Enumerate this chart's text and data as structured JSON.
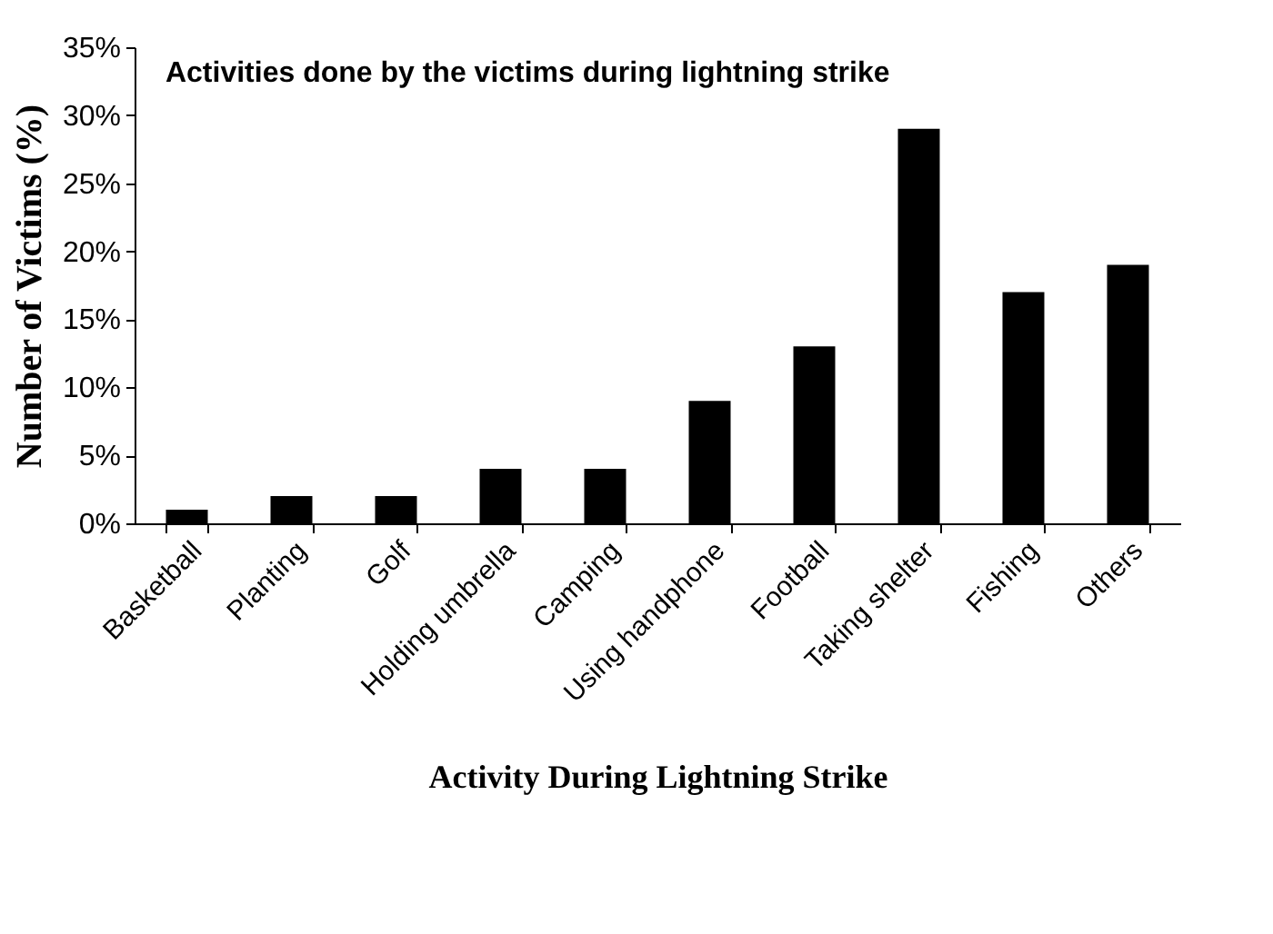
{
  "chart_data": {
    "type": "bar",
    "title": "Activities done by the victims during lightning strike",
    "xlabel": "Activity During Lightning Strike",
    "ylabel": "Number of Victims (%)",
    "categories": [
      "Basketball",
      "Planting",
      "Golf",
      "Holding umbrella",
      "Camping",
      "Using handphone",
      "Football",
      "Taking shelter",
      "Fishing",
      "Others"
    ],
    "values": [
      1,
      2,
      2,
      4,
      4,
      9,
      13,
      29,
      17,
      19
    ],
    "color": "#000000",
    "ylim": [
      0,
      35
    ],
    "yticks": [
      {
        "value": 0,
        "label": "0%"
      },
      {
        "value": 5,
        "label": "5%"
      },
      {
        "value": 10,
        "label": "10%"
      },
      {
        "value": 15,
        "label": "15%"
      },
      {
        "value": 20,
        "label": "20%"
      },
      {
        "value": 25,
        "label": "25%"
      },
      {
        "value": 30,
        "label": "30%"
      },
      {
        "value": 35,
        "label": "35%"
      }
    ],
    "grid": false
  }
}
